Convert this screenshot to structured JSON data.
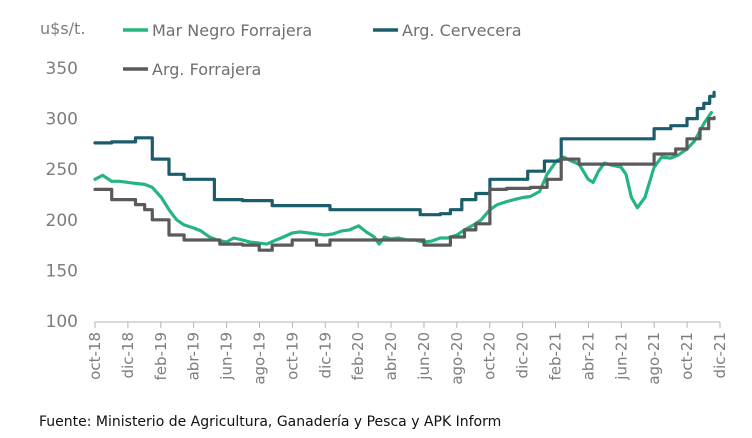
{
  "chart_data": {
    "type": "line",
    "ylabel": "u$s/t.",
    "ylim": [
      100,
      350
    ],
    "yticks": [
      100,
      150,
      200,
      250,
      300,
      350
    ],
    "grid": false,
    "x_start": "2018-10",
    "x_end": "2021-12",
    "xticks": [
      "oct-18",
      "dic-18",
      "feb-19",
      "abr-19",
      "jun-19",
      "ago-19",
      "oct-19",
      "dic-19",
      "feb-20",
      "abr-20",
      "jun-20",
      "ago-20",
      "oct-20",
      "dic-20",
      "feb-21",
      "abr-21",
      "jun-21",
      "ago-21",
      "oct-21",
      "dic-21"
    ],
    "legend_position": "top",
    "series": [
      {
        "name": "Mar Negro Forrajera",
        "color": "#26b57f",
        "step": false,
        "points": [
          [
            "2018-10-01",
            240
          ],
          [
            "2018-10-15",
            244
          ],
          [
            "2018-11-01",
            238
          ],
          [
            "2018-11-15",
            238
          ],
          [
            "2018-12-01",
            237
          ],
          [
            "2018-12-15",
            236
          ],
          [
            "2019-01-01",
            235
          ],
          [
            "2019-01-15",
            232
          ],
          [
            "2019-02-01",
            222
          ],
          [
            "2019-02-15",
            210
          ],
          [
            "2019-03-01",
            200
          ],
          [
            "2019-03-15",
            195
          ],
          [
            "2019-04-01",
            192
          ],
          [
            "2019-04-15",
            189
          ],
          [
            "2019-05-01",
            183
          ],
          [
            "2019-05-15",
            180
          ],
          [
            "2019-06-01",
            178
          ],
          [
            "2019-06-15",
            182
          ],
          [
            "2019-07-01",
            180
          ],
          [
            "2019-07-15",
            178
          ],
          [
            "2019-08-01",
            177
          ],
          [
            "2019-08-15",
            176
          ],
          [
            "2019-09-01",
            180
          ],
          [
            "2019-09-15",
            183
          ],
          [
            "2019-10-01",
            187
          ],
          [
            "2019-10-15",
            188
          ],
          [
            "2019-11-01",
            187
          ],
          [
            "2019-11-15",
            186
          ],
          [
            "2019-12-01",
            185
          ],
          [
            "2019-12-15",
            186
          ],
          [
            "2020-01-01",
            189
          ],
          [
            "2020-01-15",
            190
          ],
          [
            "2020-02-01",
            194
          ],
          [
            "2020-02-15",
            188
          ],
          [
            "2020-03-01",
            183
          ],
          [
            "2020-03-10",
            176
          ],
          [
            "2020-03-20",
            183
          ],
          [
            "2020-04-01",
            181
          ],
          [
            "2020-04-15",
            182
          ],
          [
            "2020-05-01",
            180
          ],
          [
            "2020-05-15",
            180
          ],
          [
            "2020-06-01",
            178
          ],
          [
            "2020-06-15",
            179
          ],
          [
            "2020-07-01",
            182
          ],
          [
            "2020-07-15",
            182
          ],
          [
            "2020-08-01",
            185
          ],
          [
            "2020-08-15",
            190
          ],
          [
            "2020-09-01",
            195
          ],
          [
            "2020-09-15",
            200
          ],
          [
            "2020-10-01",
            210
          ],
          [
            "2020-10-15",
            215
          ],
          [
            "2020-11-01",
            218
          ],
          [
            "2020-11-15",
            220
          ],
          [
            "2020-12-01",
            222
          ],
          [
            "2020-12-15",
            223
          ],
          [
            "2021-01-01",
            228
          ],
          [
            "2021-01-15",
            245
          ],
          [
            "2021-02-01",
            258
          ],
          [
            "2021-02-15",
            262
          ],
          [
            "2021-03-01",
            258
          ],
          [
            "2021-03-15",
            255
          ],
          [
            "2021-04-01",
            240
          ],
          [
            "2021-04-10",
            237
          ],
          [
            "2021-04-20",
            248
          ],
          [
            "2021-05-01",
            256
          ],
          [
            "2021-05-15",
            254
          ],
          [
            "2021-06-01",
            252
          ],
          [
            "2021-06-10",
            245
          ],
          [
            "2021-06-20",
            222
          ],
          [
            "2021-07-01",
            212
          ],
          [
            "2021-07-15",
            222
          ],
          [
            "2021-08-01",
            252
          ],
          [
            "2021-08-15",
            262
          ],
          [
            "2021-09-01",
            261
          ],
          [
            "2021-09-15",
            264
          ],
          [
            "2021-10-01",
            270
          ],
          [
            "2021-10-15",
            278
          ],
          [
            "2021-11-01",
            295
          ],
          [
            "2021-11-15",
            306
          ]
        ]
      },
      {
        "name": "Arg. Cervecera",
        "color": "#1c5d6b",
        "step": true,
        "points": [
          [
            "2018-10-01",
            276
          ],
          [
            "2018-11-01",
            277
          ],
          [
            "2018-12-15",
            281
          ],
          [
            "2019-01-15",
            260
          ],
          [
            "2019-02-15",
            245
          ],
          [
            "2019-03-15",
            240
          ],
          [
            "2019-05-10",
            220
          ],
          [
            "2019-07-01",
            219
          ],
          [
            "2019-08-25",
            214
          ],
          [
            "2019-10-15",
            214
          ],
          [
            "2019-12-10",
            210
          ],
          [
            "2020-02-01",
            210
          ],
          [
            "2020-04-01",
            210
          ],
          [
            "2020-05-25",
            205
          ],
          [
            "2020-07-01",
            206
          ],
          [
            "2020-07-20",
            210
          ],
          [
            "2020-08-10",
            220
          ],
          [
            "2020-09-05",
            226
          ],
          [
            "2020-10-01",
            240
          ],
          [
            "2020-11-10",
            240
          ],
          [
            "2020-12-10",
            248
          ],
          [
            "2021-01-10",
            258
          ],
          [
            "2021-02-10",
            280
          ],
          [
            "2021-03-15",
            280
          ],
          [
            "2021-05-01",
            280
          ],
          [
            "2021-06-15",
            280
          ],
          [
            "2021-08-01",
            290
          ],
          [
            "2021-09-01",
            293
          ],
          [
            "2021-10-01",
            300
          ],
          [
            "2021-10-20",
            310
          ],
          [
            "2021-11-01",
            315
          ],
          [
            "2021-11-12",
            322
          ],
          [
            "2021-11-20",
            326
          ]
        ]
      },
      {
        "name": "Arg. Forrajera",
        "color": "#5a5a5a",
        "step": true,
        "points": [
          [
            "2018-10-01",
            230
          ],
          [
            "2018-11-01",
            220
          ],
          [
            "2018-12-15",
            215
          ],
          [
            "2019-01-01",
            210
          ],
          [
            "2019-01-15",
            200
          ],
          [
            "2019-02-15",
            185
          ],
          [
            "2019-03-15",
            180
          ],
          [
            "2019-05-01",
            180
          ],
          [
            "2019-05-20",
            176
          ],
          [
            "2019-07-01",
            175
          ],
          [
            "2019-08-01",
            170
          ],
          [
            "2019-08-25",
            175
          ],
          [
            "2019-10-01",
            180
          ],
          [
            "2019-11-15",
            175
          ],
          [
            "2019-12-10",
            180
          ],
          [
            "2020-02-01",
            180
          ],
          [
            "2020-04-01",
            180
          ],
          [
            "2020-06-01",
            175
          ],
          [
            "2020-07-20",
            183
          ],
          [
            "2020-08-15",
            190
          ],
          [
            "2020-09-05",
            196
          ],
          [
            "2020-10-01",
            230
          ],
          [
            "2020-11-01",
            231
          ],
          [
            "2020-12-15",
            232
          ],
          [
            "2021-01-15",
            240
          ],
          [
            "2021-02-10",
            260
          ],
          [
            "2021-03-15",
            255
          ],
          [
            "2021-05-01",
            255
          ],
          [
            "2021-06-15",
            255
          ],
          [
            "2021-08-01",
            265
          ],
          [
            "2021-09-10",
            270
          ],
          [
            "2021-10-01",
            280
          ],
          [
            "2021-10-25",
            290
          ],
          [
            "2021-11-10",
            300
          ],
          [
            "2021-11-20",
            301
          ]
        ]
      }
    ]
  },
  "source": {
    "text": "Fuente: Ministerio de Agricultura, Ganadería y Pesca y APK Inform"
  }
}
